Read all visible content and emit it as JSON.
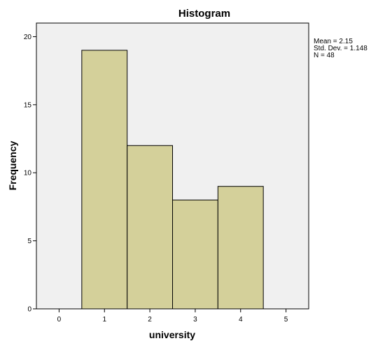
{
  "chart_data": {
    "type": "bar",
    "title": "Histogram",
    "xlabel": "university",
    "ylabel": "Frequency",
    "xlim": [
      -0.5,
      5.5
    ],
    "ylim": [
      0,
      21
    ],
    "x_ticks": [
      0,
      1,
      2,
      3,
      4,
      5
    ],
    "y_ticks": [
      0,
      5,
      10,
      15,
      20
    ],
    "bins": [
      {
        "center": 1,
        "frequency": 19
      },
      {
        "center": 2,
        "frequency": 12
      },
      {
        "center": 3,
        "frequency": 8
      },
      {
        "center": 4,
        "frequency": 9
      }
    ],
    "bin_width": 1,
    "bar_color": "#d4d09a",
    "plot_background": "#f0f0f0",
    "grid": false,
    "stats": {
      "mean": "Mean = 2.15",
      "std_dev": "Std. Dev. = 1.148",
      "n": "N = 48"
    }
  }
}
